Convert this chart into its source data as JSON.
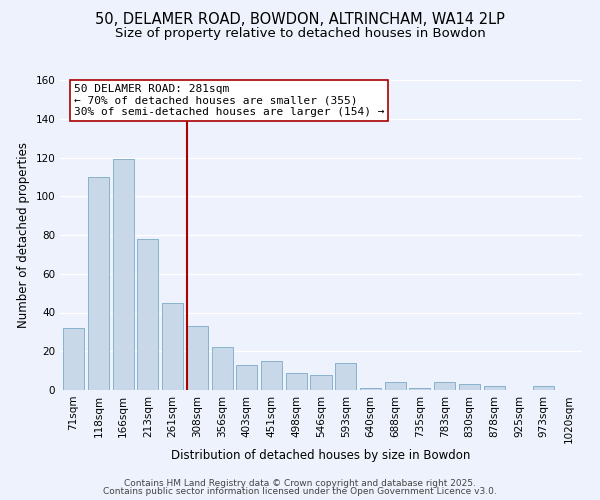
{
  "title": "50, DELAMER ROAD, BOWDON, ALTRINCHAM, WA14 2LP",
  "subtitle": "Size of property relative to detached houses in Bowdon",
  "xlabel": "Distribution of detached houses by size in Bowdon",
  "ylabel": "Number of detached properties",
  "bar_labels": [
    "71sqm",
    "118sqm",
    "166sqm",
    "213sqm",
    "261sqm",
    "308sqm",
    "356sqm",
    "403sqm",
    "451sqm",
    "498sqm",
    "546sqm",
    "593sqm",
    "640sqm",
    "688sqm",
    "735sqm",
    "783sqm",
    "830sqm",
    "878sqm",
    "925sqm",
    "973sqm",
    "1020sqm"
  ],
  "bar_values": [
    32,
    110,
    119,
    78,
    45,
    33,
    22,
    13,
    15,
    9,
    8,
    14,
    1,
    4,
    1,
    4,
    3,
    2,
    0,
    2,
    0
  ],
  "bar_color": "#c8d8e8",
  "bar_edge_color": "#7aaac8",
  "background_color": "#eef2fc",
  "grid_color": "#ffffff",
  "vline_x_index": 4.57,
  "vline_color": "#aa0000",
  "annotation_line1": "50 DELAMER ROAD: 281sqm",
  "annotation_line2": "← 70% of detached houses are smaller (355)",
  "annotation_line3": "30% of semi-detached houses are larger (154) →",
  "annotation_box_color": "#ffffff",
  "annotation_box_edge": "#aa0000",
  "footer_line1": "Contains HM Land Registry data © Crown copyright and database right 2025.",
  "footer_line2": "Contains public sector information licensed under the Open Government Licence v3.0.",
  "ylim": [
    0,
    160
  ],
  "yticks": [
    0,
    20,
    40,
    60,
    80,
    100,
    120,
    140,
    160
  ],
  "title_fontsize": 10.5,
  "subtitle_fontsize": 9.5,
  "axis_label_fontsize": 8.5,
  "tick_fontsize": 7.5,
  "annotation_fontsize": 8,
  "footer_fontsize": 6.5
}
